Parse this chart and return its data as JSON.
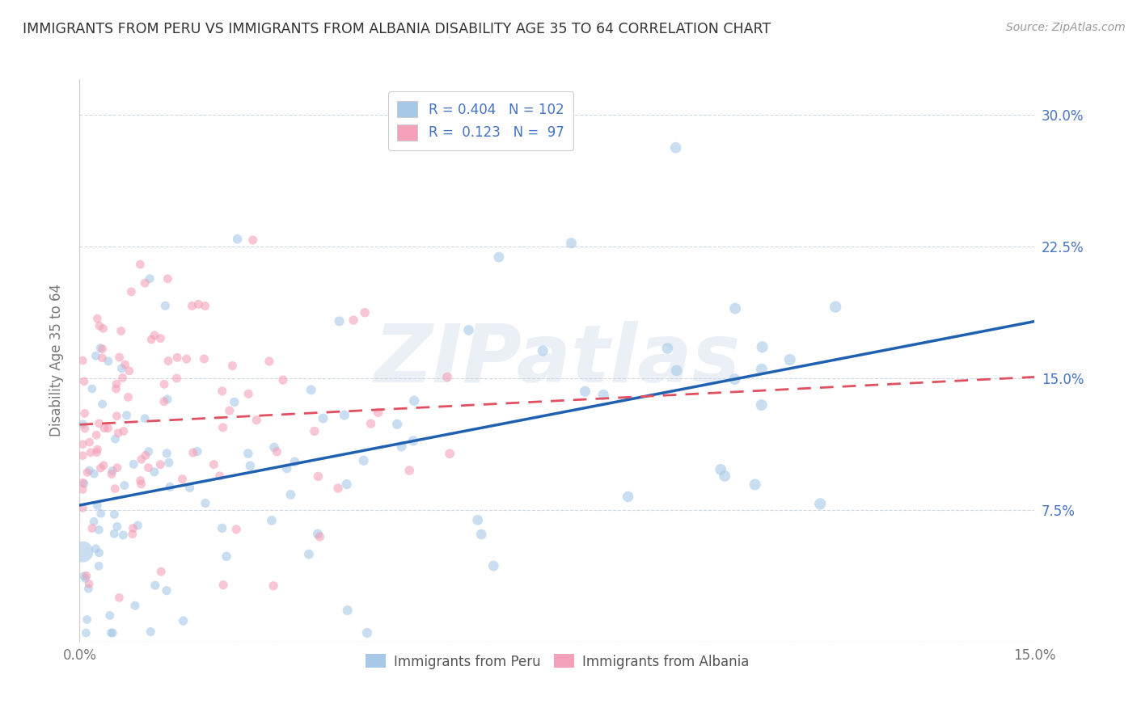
{
  "title": "IMMIGRANTS FROM PERU VS IMMIGRANTS FROM ALBANIA DISABILITY AGE 35 TO 64 CORRELATION CHART",
  "source": "Source: ZipAtlas.com",
  "ylabel": "Disability Age 35 to 64",
  "xlim": [
    0.0,
    0.15
  ],
  "ylim": [
    0.0,
    0.32
  ],
  "peru_R": 0.404,
  "peru_N": 102,
  "albania_R": 0.123,
  "albania_N": 97,
  "peru_color": "#a8c8e8",
  "albania_color": "#f4a0b8",
  "peru_line_color": "#2060b0",
  "albania_line_color": "#e05060",
  "watermark": "ZIPatlas",
  "peru_intercept": 0.08,
  "peru_slope": 0.55,
  "albania_intercept": 0.118,
  "albania_slope": 0.18,
  "grid_color": "#d0d8e0",
  "title_color": "#333333",
  "source_color": "#999999",
  "tick_color": "#777777",
  "right_tick_color": "#4472c4",
  "legend_text_color": "#4472c4"
}
